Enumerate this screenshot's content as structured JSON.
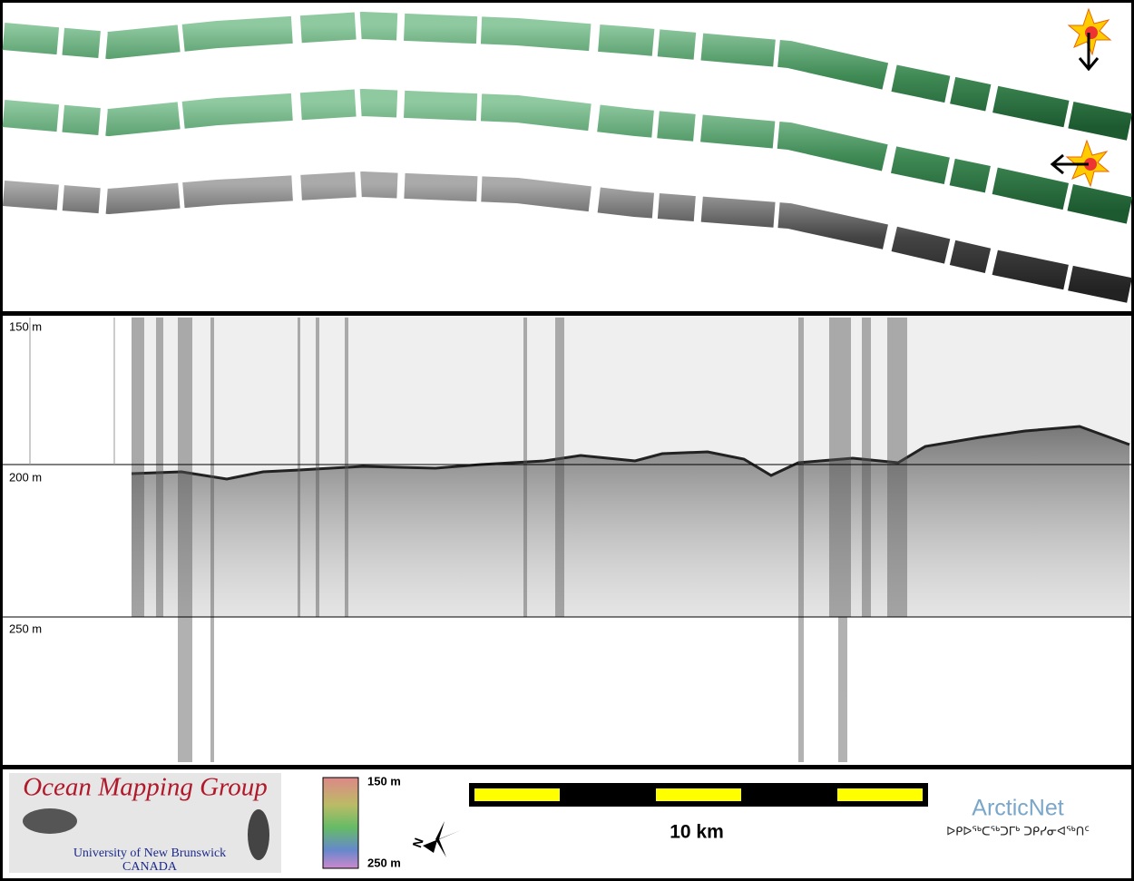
{
  "profile": {
    "depth_labels": [
      "150 m",
      "200 m",
      "250 m"
    ]
  },
  "footer": {
    "logo_title": "Ocean Mapping Group",
    "logo_university": "University of New Brunswick",
    "logo_country": "CANADA",
    "colorbar_top": "150 m",
    "colorbar_bottom": "250 m",
    "north_label": "N",
    "scale_label": "10 km",
    "partner": "ArcticNet",
    "partner_syllabics": "ᐅᑭᐅᖅᑕᖅᑐᒥᒃ ᑐᑭᓯᓂᐊᖅᑎᑦ"
  }
}
